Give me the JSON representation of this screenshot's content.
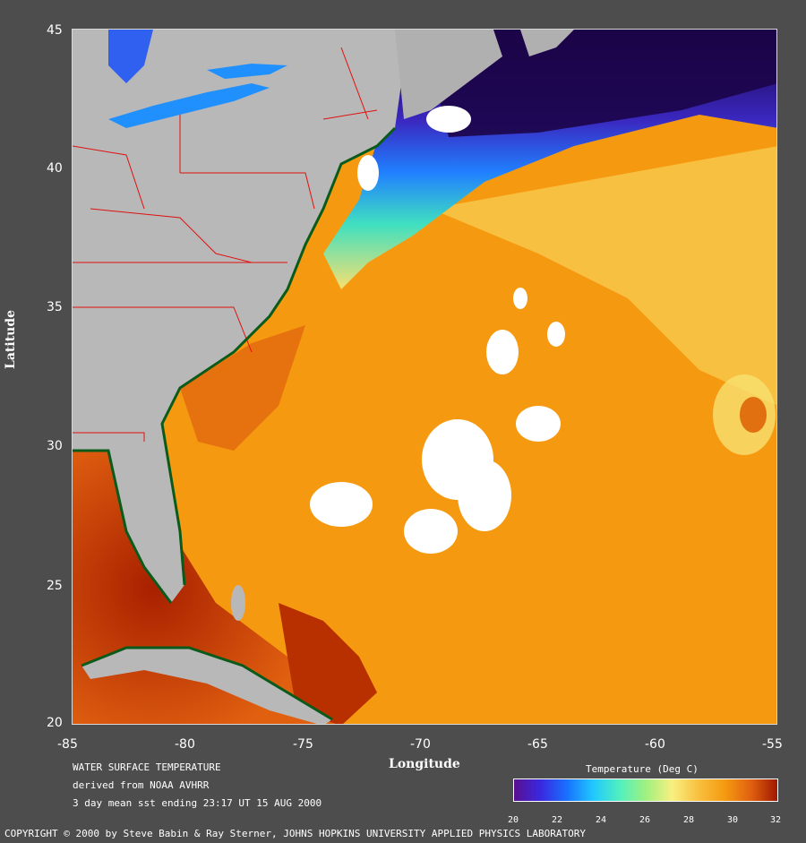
{
  "map": {
    "xaxis": {
      "title": "Longitude",
      "ticks": [
        "-85",
        "-80",
        "-75",
        "-70",
        "-65",
        "-60",
        "-55"
      ],
      "range": [
        -85,
        -55
      ]
    },
    "yaxis": {
      "title": "Latitude",
      "ticks": [
        "45",
        "40",
        "35",
        "30",
        "25",
        "20"
      ],
      "range": [
        20,
        45
      ]
    }
  },
  "info": {
    "line1": "WATER SURFACE TEMPERATURE",
    "line2": "derived from NOAA AVHRR",
    "line3": "3 day mean sst ending 23:17 UT 15 AUG 2000"
  },
  "colorbar": {
    "title": "Temperature (Deg C)",
    "ticks": [
      "20",
      "22",
      "24",
      "26",
      "28",
      "30",
      "32"
    ],
    "range": [
      20,
      32
    ],
    "colors": [
      "#5a1090",
      "#3a28e0",
      "#1870ff",
      "#20c8ff",
      "#50f0c0",
      "#a0f080",
      "#f8f080",
      "#f8c040",
      "#f59a10",
      "#e06010",
      "#a01800"
    ]
  },
  "colors": {
    "land": "#b8b8b8",
    "ocean_warm": "#f59a10",
    "ocean_hot": "#c03808",
    "cloud": "#ffffff",
    "border": "#e01010",
    "coast": "#0a5a1a"
  },
  "footer": {
    "copyright": "COPYRIGHT © 2000 by Steve Babin & Ray Sterner, JOHNS HOPKINS UNIVERSITY APPLIED PHYSICS LABORATORY"
  }
}
